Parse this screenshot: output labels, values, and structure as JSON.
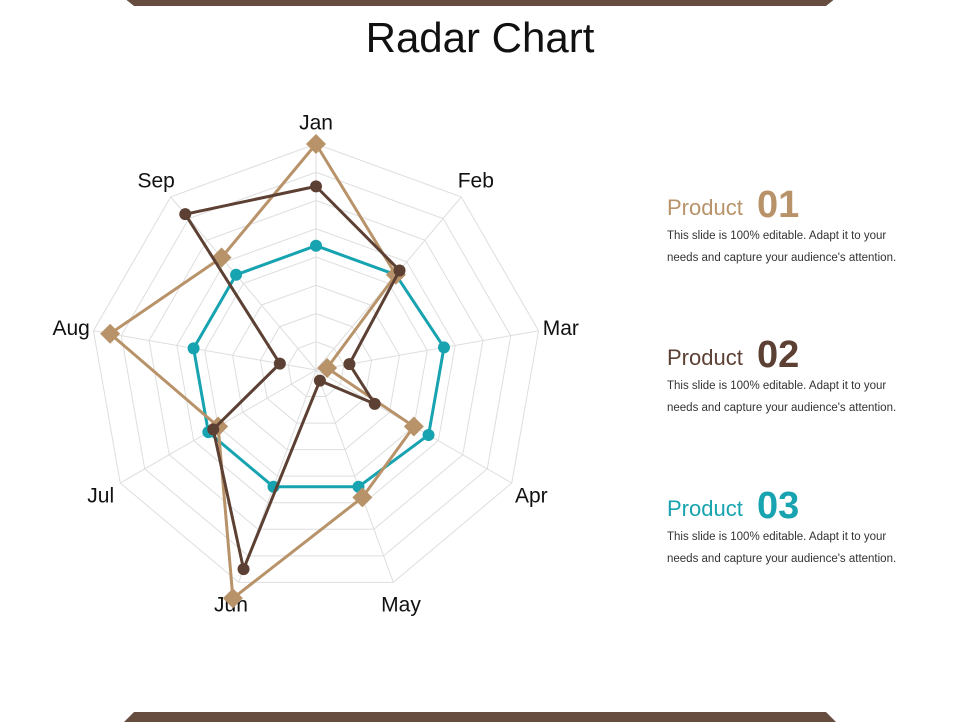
{
  "title": "Radar Chart",
  "colors": {
    "accent_brown": "#674d3f",
    "product1": "#b8936a",
    "product2": "#5c4033",
    "product3": "#17a3b0",
    "grid": "#dedede"
  },
  "legend": [
    {
      "name": "Product",
      "number": "01",
      "color": "#b8936a",
      "line1": "This slide is 100% editable. Adapt it to your",
      "line2": "needs and capture your audience's attention."
    },
    {
      "name": "Product",
      "number": "02",
      "color": "#5c4033",
      "line1": "This slide is 100% editable. Adapt it to your",
      "line2": "needs and capture your audience's attention."
    },
    {
      "name": "Product",
      "number": "03",
      "color": "#17a3b0",
      "line1": "This slide is 100% editable. Adapt it to your",
      "line2": "needs and capture your audience's attention."
    }
  ],
  "chart_data": {
    "type": "radar",
    "title": "Radar Chart",
    "categories": [
      "Jan",
      "Feb",
      "Mar",
      "Apr",
      "May",
      "Jun",
      "Jul",
      "Aug",
      "Sep"
    ],
    "range": [
      0,
      8
    ],
    "grid_levels": 8,
    "grid": true,
    "legend_position": "right",
    "series": [
      {
        "name": "Product 01",
        "color": "#b8936a",
        "marker": "diamond",
        "values": [
          8,
          4.4,
          0.4,
          4,
          4.8,
          8.6,
          4,
          7.4,
          5.2
        ]
      },
      {
        "name": "Product 02",
        "color": "#5c4033",
        "marker": "circle",
        "values": [
          6.5,
          4.6,
          1.2,
          2.4,
          0.4,
          7.5,
          4.2,
          1.3,
          7.2
        ]
      },
      {
        "name": "Product 03",
        "color": "#17a3b0",
        "marker": "circle",
        "values": [
          4.4,
          4.4,
          4.6,
          4.6,
          4.4,
          4.4,
          4.4,
          4.4,
          4.4
        ]
      }
    ]
  }
}
